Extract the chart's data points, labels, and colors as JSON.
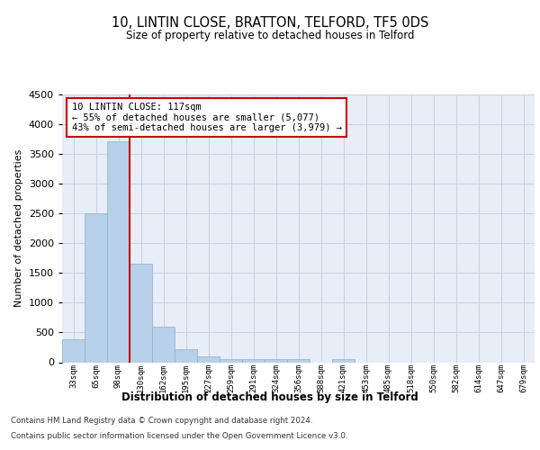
{
  "title": "10, LINTIN CLOSE, BRATTON, TELFORD, TF5 0DS",
  "subtitle": "Size of property relative to detached houses in Telford",
  "xlabel": "Distribution of detached houses by size in Telford",
  "ylabel": "Number of detached properties",
  "categories": [
    "33sqm",
    "65sqm",
    "98sqm",
    "130sqm",
    "162sqm",
    "195sqm",
    "227sqm",
    "259sqm",
    "291sqm",
    "324sqm",
    "356sqm",
    "388sqm",
    "421sqm",
    "453sqm",
    "485sqm",
    "518sqm",
    "550sqm",
    "582sqm",
    "614sqm",
    "647sqm",
    "679sqm"
  ],
  "values": [
    380,
    2500,
    3720,
    1650,
    590,
    220,
    100,
    55,
    55,
    55,
    50,
    0,
    55,
    0,
    0,
    0,
    0,
    0,
    0,
    0,
    0
  ],
  "bar_color": "#b8d0e8",
  "bar_edge_color": "#8ab0d0",
  "highlight_bar_index": 3,
  "highlight_line_color": "#cc0000",
  "annotation_text": "10 LINTIN CLOSE: 117sqm\n← 55% of detached houses are smaller (5,077)\n43% of semi-detached houses are larger (3,979) →",
  "annotation_box_edge_color": "#cc0000",
  "ylim": [
    0,
    4500
  ],
  "yticks": [
    0,
    500,
    1000,
    1500,
    2000,
    2500,
    3000,
    3500,
    4000,
    4500
  ],
  "grid_color": "#c8d4e4",
  "background_color": "#e8eef8",
  "footer_line1": "Contains HM Land Registry data © Crown copyright and database right 2024.",
  "footer_line2": "Contains public sector information licensed under the Open Government Licence v3.0."
}
